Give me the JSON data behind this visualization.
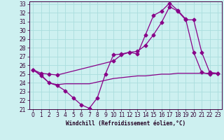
{
  "xlabel": "Windchill (Refroidissement éolien,°C)",
  "bg_color": "#cdf0f0",
  "grid_color": "#aadddd",
  "line_color": "#880088",
  "xlim": [
    -0.5,
    23.5
  ],
  "ylim": [
    21,
    33.3
  ],
  "xticks": [
    0,
    1,
    2,
    3,
    4,
    5,
    6,
    7,
    8,
    9,
    10,
    11,
    12,
    13,
    14,
    15,
    16,
    17,
    18,
    19,
    20,
    21,
    22,
    23
  ],
  "yticks": [
    21,
    22,
    23,
    24,
    25,
    26,
    27,
    28,
    29,
    30,
    31,
    32,
    33
  ],
  "line1_x": [
    0,
    1,
    2,
    3,
    4,
    5,
    6,
    7,
    8,
    9,
    10,
    11,
    12,
    13,
    14,
    15,
    16,
    17,
    18,
    19,
    20,
    21,
    22,
    23
  ],
  "line1_y": [
    25.5,
    24.8,
    24.0,
    23.7,
    23.1,
    22.3,
    21.5,
    21.1,
    22.3,
    25.0,
    27.2,
    27.3,
    27.5,
    27.3,
    29.5,
    31.7,
    32.2,
    33.1,
    32.3,
    31.3,
    27.5,
    25.2,
    25.0,
    25.1
  ],
  "line2_x": [
    0,
    1,
    2,
    3,
    4,
    5,
    6,
    7,
    8,
    9,
    10,
    11,
    12,
    13,
    14,
    15,
    16,
    17,
    18,
    19,
    20,
    21,
    22,
    23
  ],
  "line2_y": [
    25.5,
    24.9,
    24.0,
    23.8,
    23.9,
    23.9,
    23.9,
    23.9,
    24.1,
    24.3,
    24.5,
    24.6,
    24.7,
    24.8,
    24.8,
    24.9,
    25.0,
    25.0,
    25.1,
    25.1,
    25.1,
    25.1,
    25.1,
    25.1
  ],
  "line3_x": [
    0,
    1,
    2,
    3,
    10,
    11,
    12,
    13,
    14,
    15,
    16,
    17,
    18,
    19,
    20,
    21,
    22,
    23
  ],
  "line3_y": [
    25.5,
    25.1,
    25.0,
    24.9,
    26.5,
    27.2,
    27.5,
    27.6,
    28.3,
    29.5,
    30.9,
    32.7,
    32.2,
    31.2,
    31.2,
    27.5,
    25.2,
    25.1
  ],
  "markersize": 2.5,
  "lw": 0.9,
  "tick_fontsize": 5.5,
  "xlabel_fontsize": 5.5
}
